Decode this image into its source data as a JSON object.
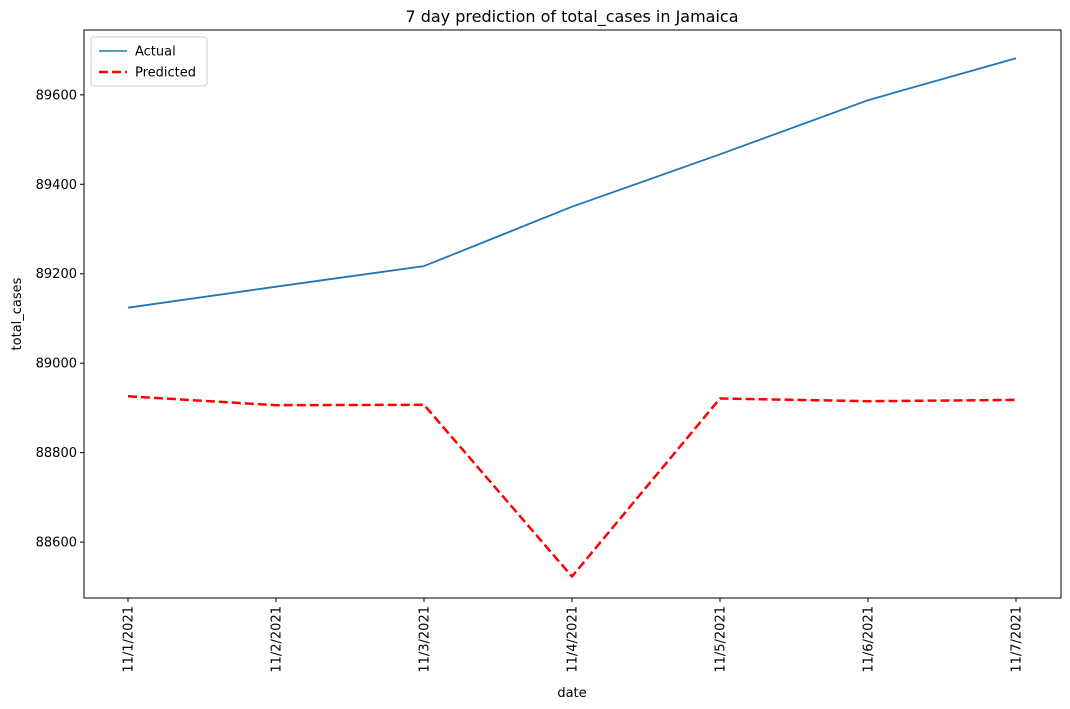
{
  "chart_data": {
    "type": "line",
    "title": "7 day prediction of total_cases in Jamaica",
    "xlabel": "date",
    "ylabel": "total_cases",
    "categories": [
      "11/1/2021",
      "11/2/2021",
      "11/3/2021",
      "11/4/2021",
      "11/5/2021",
      "11/6/2021",
      "11/7/2021"
    ],
    "yticks": [
      88600,
      88800,
      89000,
      89200,
      89400,
      89600
    ],
    "ylim": [
      88475,
      89745
    ],
    "grid": false,
    "legend_position": "top-left",
    "series": [
      {
        "name": "Actual",
        "values": [
          89124,
          89171,
          89217,
          89350,
          89467,
          89588,
          89682
        ],
        "color": "#1f77b4",
        "style": "solid"
      },
      {
        "name": "Predicted",
        "values": [
          88926,
          88906,
          88907,
          88523,
          88921,
          88915,
          88918
        ],
        "color": "#ff0000",
        "style": "dashed"
      }
    ]
  }
}
